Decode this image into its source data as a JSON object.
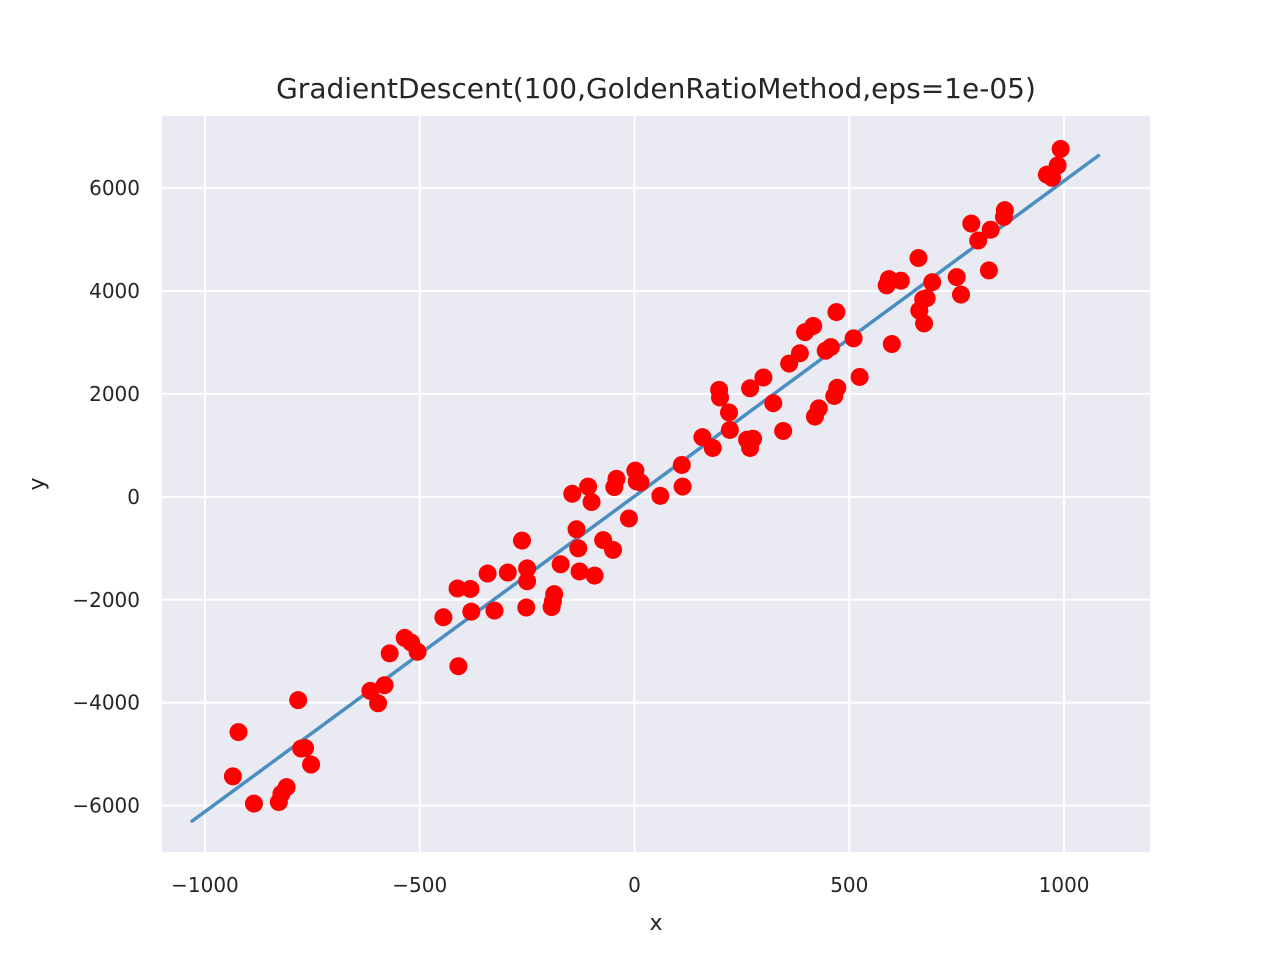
{
  "chart_data": {
    "type": "scatter",
    "title": "GradientDescent(100,GoldenRatioMethod,eps=1e-05)",
    "xlabel": "x",
    "ylabel": "y",
    "xlim": [
      -1100,
      1200
    ],
    "ylim": [
      -6900,
      7400
    ],
    "xticks": [
      -1000,
      -500,
      0,
      500,
      1000
    ],
    "xtick_labels": [
      "−1000",
      "−500",
      "0",
      "500",
      "1000"
    ],
    "yticks": [
      -6000,
      -4000,
      -2000,
      0,
      2000,
      4000,
      6000
    ],
    "ytick_labels": [
      "−6000",
      "−4000",
      "−2000",
      "0",
      "2000",
      "4000",
      "6000"
    ],
    "grid": true,
    "colors": {
      "background": "#eaeaf2",
      "grid": "#ffffff",
      "points": "#ff0000",
      "line": "#4a8ec2"
    },
    "fit_line": {
      "x": [
        -1030,
        1080
      ],
      "y": [
        -6300,
        6630
      ]
    },
    "points": {
      "x": [
        -935,
        -922,
        -886,
        -828,
        -822,
        -810,
        -783,
        -776,
        -767,
        -753,
        -615,
        -597,
        -582,
        -570,
        -535,
        -520,
        -505,
        -445,
        -412,
        -410,
        -382,
        -380,
        -342,
        -326,
        -295,
        -262,
        -252,
        -250,
        -250,
        -193,
        -190,
        -187,
        -172,
        -145,
        -135,
        -131,
        -128,
        -108,
        -100,
        -93,
        -73,
        -50,
        -47,
        -42,
        -13,
        2,
        5,
        14,
        60,
        110,
        112,
        158,
        182,
        197,
        199,
        220,
        222,
        262,
        269,
        269,
        276,
        300,
        323,
        346,
        360,
        385,
        397,
        416,
        420,
        429,
        445,
        457,
        465,
        470,
        472,
        510,
        524,
        587,
        592,
        599,
        620,
        661,
        663,
        672,
        674,
        680,
        693,
        750,
        760,
        784,
        800,
        825,
        829,
        860,
        862,
        960,
        972,
        985,
        992
      ],
      "y": [
        -5430,
        -4570,
        -5960,
        -5930,
        -5770,
        -5640,
        -3950,
        -4890,
        -4880,
        -5200,
        -3770,
        -4010,
        -3660,
        -3040,
        -2740,
        -2830,
        -3010,
        -2340,
        -1780,
        -3290,
        -1790,
        -2230,
        -1490,
        -2210,
        -1470,
        -850,
        -2150,
        -1390,
        -1640,
        -2140,
        -2030,
        -1890,
        -1310,
        60,
        -630,
        -1000,
        -1450,
        200,
        -100,
        -1530,
        -840,
        -1030,
        190,
        350,
        -420,
        510,
        300,
        280,
        20,
        620,
        200,
        1160,
        950,
        2080,
        1930,
        1640,
        1300,
        1110,
        2110,
        950,
        1130,
        2320,
        1820,
        1280,
        2590,
        2790,
        3200,
        3320,
        1560,
        1720,
        2840,
        2910,
        1960,
        3590,
        2120,
        3080,
        2330,
        4110,
        4230,
        2970,
        4200,
        4640,
        3620,
        3840,
        3370,
        3860,
        4170,
        4270,
        3930,
        5310,
        4980,
        4400,
        5190,
        5440,
        5570,
        6260,
        6200,
        6440,
        6760
      ]
    }
  }
}
